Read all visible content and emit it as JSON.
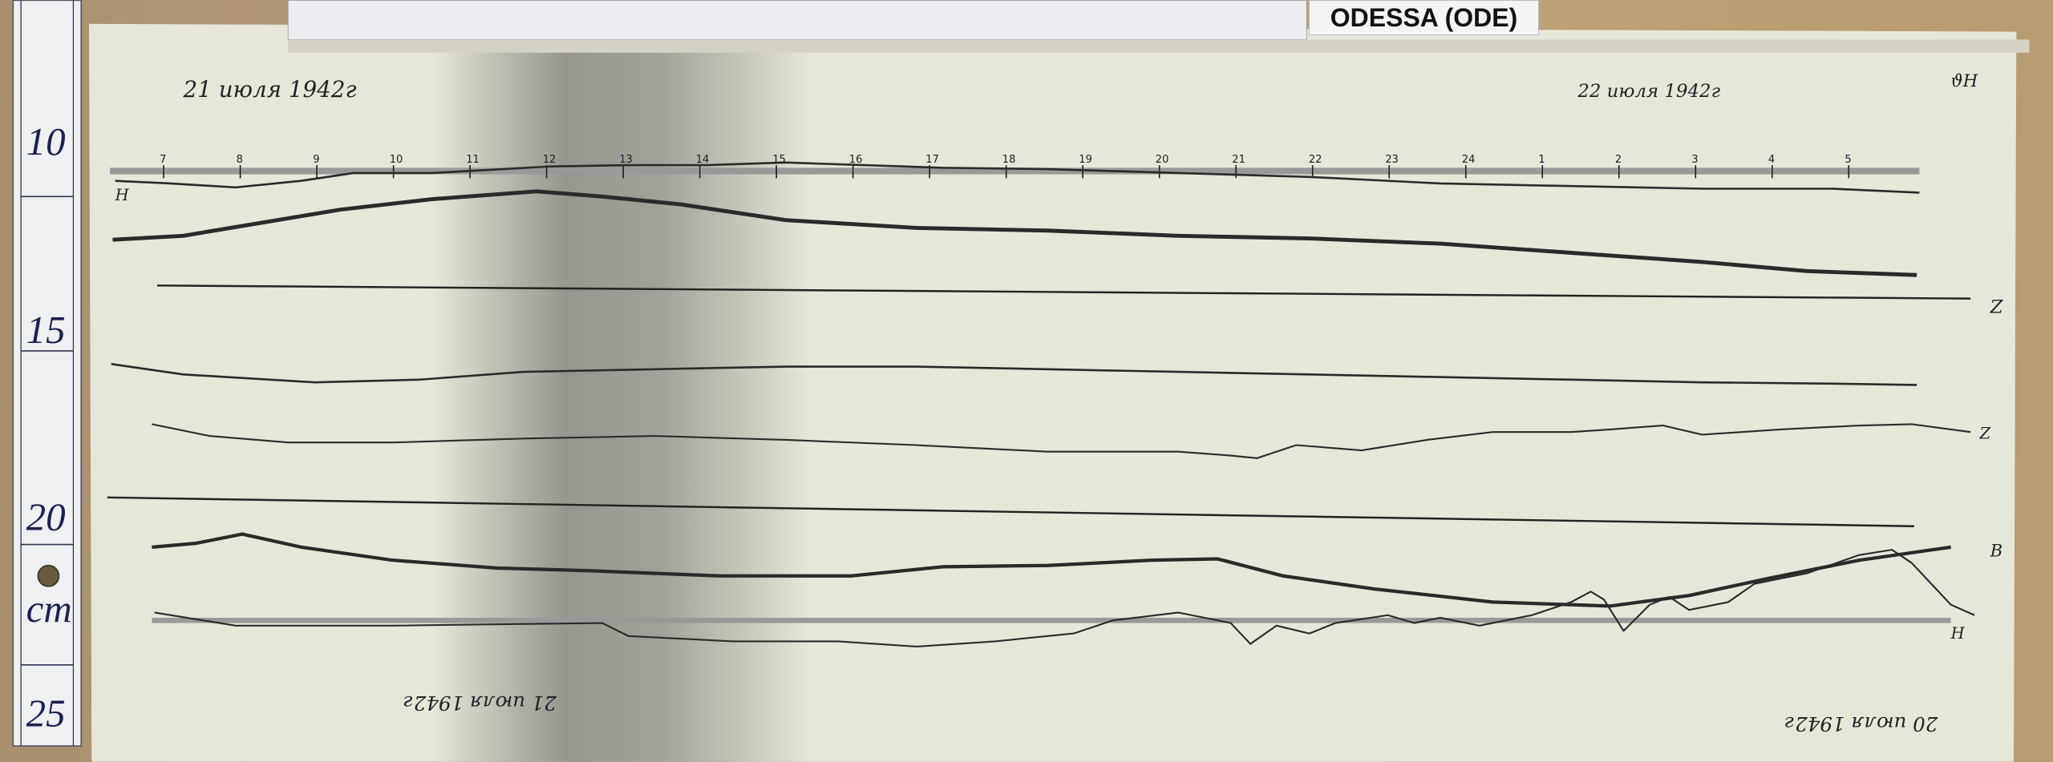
{
  "station_label": "ODESSA (ODE)",
  "ruler": {
    "marks": [
      "10",
      "15",
      "20",
      "25"
    ],
    "unit": "cm"
  },
  "annotations": {
    "top_left_date": "21 июля 1942г",
    "top_right_date": "22 июля 1942г",
    "top_right_code": "ϑH",
    "bottom_left_date_inverted": "21 июля 1942г",
    "bottom_right_date_inverted": "20 июля 1942г",
    "left_trace_label": "H",
    "right_labels": [
      "Z",
      "Z",
      "B",
      "H"
    ]
  },
  "top_time_ticks": [
    "7",
    "8",
    "9",
    "10",
    "11",
    "12",
    "13",
    "14",
    "15",
    "16",
    "17",
    "18",
    "19",
    "20",
    "21",
    "22",
    "23",
    "24",
    "1",
    "2",
    "3",
    "4",
    "5"
  ],
  "colors": {
    "paper": "#e6e6d8",
    "trace": "#2a2a2a",
    "ruler": "#1b2250"
  }
}
